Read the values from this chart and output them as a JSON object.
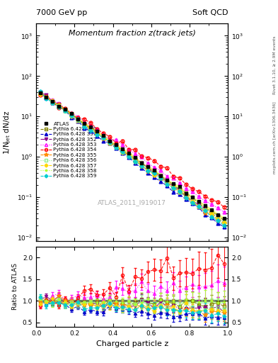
{
  "title": "Momentum fraction z(track jets)",
  "top_left_label": "7000 GeV pp",
  "top_right_label": "Soft QCD",
  "ylabel_main": "1/N$_\\mathregular{jet}$ dN/dz",
  "ylabel_ratio": "Ratio to ATLAS",
  "xlabel": "Charged particle z",
  "watermark": "ATLAS_2011_I919017",
  "right_label_top": "Rivet 3.1.10, ≥ 2.9M events",
  "right_label_bottom": "mcplots.cern.ch [arXiv:1306.3436]",
  "series": [
    {
      "label": "ATLAS",
      "color": "#000000",
      "marker": "s",
      "ms": 3.5,
      "ls": "none",
      "lw": 1.0,
      "filled": true,
      "zorder": 10
    },
    {
      "label": "Pythia 6.428 350",
      "color": "#808000",
      "marker": "s",
      "ms": 3.5,
      "ls": "--",
      "lw": 0.8,
      "filled": false,
      "zorder": 5
    },
    {
      "label": "Pythia 6.428 351",
      "color": "#0000cc",
      "marker": "^",
      "ms": 3.5,
      "ls": "--",
      "lw": 0.8,
      "filled": true,
      "zorder": 5
    },
    {
      "label": "Pythia 6.428 352",
      "color": "#8b008b",
      "marker": "v",
      "ms": 3.5,
      "ls": "-.",
      "lw": 0.8,
      "filled": true,
      "zorder": 5
    },
    {
      "label": "Pythia 6.428 353",
      "color": "#ff00ff",
      "marker": "^",
      "ms": 3.5,
      "ls": ":",
      "lw": 0.8,
      "filled": false,
      "zorder": 5
    },
    {
      "label": "Pythia 6.428 354",
      "color": "#ff0000",
      "marker": "o",
      "ms": 3.5,
      "ls": "--",
      "lw": 0.8,
      "filled": false,
      "zorder": 5
    },
    {
      "label": "Pythia 6.428 355",
      "color": "#ff8c00",
      "marker": "*",
      "ms": 4.5,
      "ls": "--",
      "lw": 0.8,
      "filled": true,
      "zorder": 5
    },
    {
      "label": "Pythia 6.428 356",
      "color": "#90ee90",
      "marker": "s",
      "ms": 3.5,
      "ls": ":",
      "lw": 0.8,
      "filled": false,
      "zorder": 5
    },
    {
      "label": "Pythia 6.428 357",
      "color": "#ffd700",
      "marker": "D",
      "ms": 3.0,
      "ls": "--",
      "lw": 0.8,
      "filled": true,
      "zorder": 5
    },
    {
      "label": "Pythia 6.428 358",
      "color": "#adff2f",
      "marker": ".",
      "ms": 4.0,
      "ls": ":",
      "lw": 0.8,
      "filled": true,
      "zorder": 5
    },
    {
      "label": "Pythia 6.428 359",
      "color": "#00ced1",
      "marker": "D",
      "ms": 3.0,
      "ls": "--",
      "lw": 0.8,
      "filled": true,
      "zorder": 5
    }
  ],
  "band_color": "#90ee90",
  "band_alpha": 0.5,
  "ylim_main": [
    0.008,
    2000
  ],
  "ylim_ratio": [
    0.4,
    2.25
  ],
  "xlim": [
    0.0,
    1.0
  ],
  "atlas_slope": -7.5,
  "atlas_amp": 45
}
